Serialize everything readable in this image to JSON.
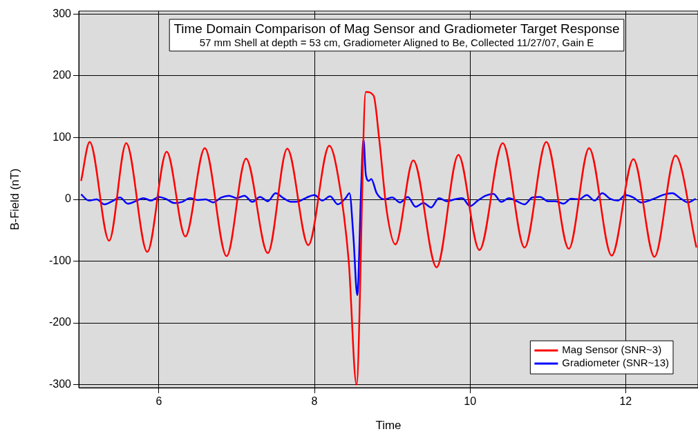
{
  "chart_data": {
    "type": "line",
    "title": "Time Domain Comparison of Mag Sensor and Gradiometer Target Response",
    "subtitle": "57 mm Shell at depth = 53 cm, Gradiometer Aligned to Be, Collected 11/27/07, Gain E",
    "xlabel": "Time",
    "ylabel": "B-Field (nT)",
    "xlim": [
      4.97,
      12.93
    ],
    "ylim": [
      -305,
      305
    ],
    "xticks": [
      6,
      8,
      10,
      12
    ],
    "yticks": [
      -300,
      -200,
      -100,
      0,
      100,
      200,
      300
    ],
    "grid": true,
    "legend": "bottom right",
    "marker": "none",
    "line_style": "solid",
    "series": [
      {
        "name": "Mag Sensor (SNR~3)",
        "color": "#ff0000",
        "x": [
          5.0,
          5.11,
          5.36,
          5.58,
          5.85,
          6.1,
          6.34,
          6.59,
          6.87,
          7.12,
          7.4,
          7.65,
          7.92,
          8.19,
          8.3,
          8.44,
          8.54,
          8.66,
          8.76,
          8.83,
          8.93,
          9.04,
          9.27,
          9.57,
          9.85,
          10.12,
          10.42,
          10.7,
          10.98,
          11.27,
          11.53,
          11.82,
          12.1,
          12.37,
          12.64,
          12.91
        ],
        "values": [
          30,
          93,
          -67,
          91,
          -85,
          77,
          -60,
          83,
          -92,
          66,
          -87,
          82,
          -74,
          87,
          40,
          -100,
          -300,
          174,
          168,
          100,
          -20,
          -73,
          63,
          -110,
          72,
          -82,
          91,
          -78,
          93,
          -80,
          83,
          -91,
          65,
          -93,
          71,
          -78
        ]
      },
      {
        "name": "Gradiometer (SNR~13)",
        "color": "#0000ff",
        "x": [
          5.0,
          5.1,
          5.2,
          5.3,
          5.4,
          5.5,
          5.6,
          5.7,
          5.8,
          5.9,
          6.0,
          6.1,
          6.2,
          6.3,
          6.4,
          6.5,
          6.6,
          6.7,
          6.8,
          6.9,
          7.0,
          7.1,
          7.2,
          7.3,
          7.4,
          7.5,
          7.6,
          7.7,
          7.8,
          7.9,
          8.0,
          8.1,
          8.2,
          8.3,
          8.4,
          8.45,
          8.5,
          8.55,
          8.6,
          8.63,
          8.66,
          8.7,
          8.73,
          8.8,
          8.9,
          9.0,
          9.1,
          9.2,
          9.3,
          9.4,
          9.5,
          9.6,
          9.7,
          9.8,
          9.9,
          10.0,
          10.1,
          10.2,
          10.3,
          10.4,
          10.5,
          10.6,
          10.7,
          10.8,
          10.9,
          11.0,
          11.1,
          11.2,
          11.3,
          11.4,
          11.5,
          11.6,
          11.7,
          11.8,
          11.9,
          12.0,
          12.1,
          12.2,
          12.3,
          12.4,
          12.5,
          12.6,
          12.7,
          12.8,
          12.9
        ],
        "values": [
          8,
          -2,
          0,
          -8,
          -3,
          3,
          -7,
          -3,
          2,
          -2,
          4,
          0,
          -6,
          -4,
          2,
          -1,
          0,
          -5,
          3,
          6,
          2,
          6,
          -4,
          4,
          -3,
          10,
          2,
          -4,
          -3,
          3,
          7,
          -2,
          5,
          -8,
          2,
          10,
          -60,
          -155,
          20,
          97,
          40,
          30,
          33,
          10,
          0,
          3,
          -5,
          4,
          -12,
          -6,
          -13,
          2,
          -3,
          0,
          2,
          -11,
          -2,
          6,
          9,
          -4,
          2,
          -3,
          -8,
          3,
          4,
          -3,
          -3,
          -7,
          1,
          0,
          7,
          -2,
          10,
          1,
          -2,
          7,
          3,
          -5,
          -2,
          3,
          8,
          10,
          2,
          -5,
          1
        ]
      }
    ]
  }
}
